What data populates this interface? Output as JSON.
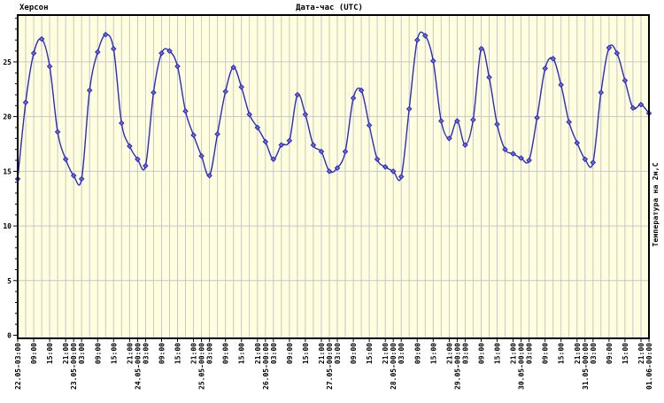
{
  "header": {
    "station": "Херсон",
    "x_axis_title": "Дата-час (UTC)"
  },
  "chart_data": {
    "type": "line",
    "title": "Херсон",
    "xlabel": "Дата-час (UTC)",
    "ylabel": "Температура на 2м,C",
    "x_start": "22.05 03:00 UTC",
    "x_end": "01.06 00:00 UTC",
    "x_step_hours": 3,
    "ylim": [
      0,
      29.3
    ],
    "y_ticks": [
      0,
      5,
      10,
      15,
      20,
      25
    ],
    "grid": true,
    "legend": "none",
    "plot_bg": "#ffffdf",
    "grid_color": "#c6c6c6",
    "line_color": "#2b2bbe",
    "marker": "diamond",
    "marker_fill": "#6a6ad8",
    "x_ticks": [
      {
        "i": 0,
        "label": "22.05-03:00"
      },
      {
        "i": 2,
        "label": "09:00"
      },
      {
        "i": 4,
        "label": "15:00"
      },
      {
        "i": 6,
        "label": "21:00"
      },
      {
        "i": 7,
        "label": "23.05-00:00"
      },
      {
        "i": 8,
        "label": "03:00"
      },
      {
        "i": 10,
        "label": "09:00"
      },
      {
        "i": 12,
        "label": "15:00"
      },
      {
        "i": 14,
        "label": "21:00"
      },
      {
        "i": 15,
        "label": "24.05-00:00"
      },
      {
        "i": 16,
        "label": "03:00"
      },
      {
        "i": 18,
        "label": "09:00"
      },
      {
        "i": 20,
        "label": "15:00"
      },
      {
        "i": 22,
        "label": "21:00"
      },
      {
        "i": 23,
        "label": "25.05-00:00"
      },
      {
        "i": 24,
        "label": "03:00"
      },
      {
        "i": 26,
        "label": "09:00"
      },
      {
        "i": 28,
        "label": "15:00"
      },
      {
        "i": 30,
        "label": "21:00"
      },
      {
        "i": 31,
        "label": "26.05-00:00"
      },
      {
        "i": 32,
        "label": "03:00"
      },
      {
        "i": 34,
        "label": "09:00"
      },
      {
        "i": 36,
        "label": "15:00"
      },
      {
        "i": 38,
        "label": "21:00"
      },
      {
        "i": 39,
        "label": "27.05-00:00"
      },
      {
        "i": 40,
        "label": "03:00"
      },
      {
        "i": 42,
        "label": "09:00"
      },
      {
        "i": 44,
        "label": "15:00"
      },
      {
        "i": 46,
        "label": "21:00"
      },
      {
        "i": 47,
        "label": "28.05-00:00"
      },
      {
        "i": 48,
        "label": "03:00"
      },
      {
        "i": 50,
        "label": "09:00"
      },
      {
        "i": 52,
        "label": "15:00"
      },
      {
        "i": 54,
        "label": "21:00"
      },
      {
        "i": 55,
        "label": "29.05-00:00"
      },
      {
        "i": 56,
        "label": "03:00"
      },
      {
        "i": 58,
        "label": "09:00"
      },
      {
        "i": 60,
        "label": "15:00"
      },
      {
        "i": 62,
        "label": "21:00"
      },
      {
        "i": 63,
        "label": "30.05-00:00"
      },
      {
        "i": 64,
        "label": "03:00"
      },
      {
        "i": 66,
        "label": "09:00"
      },
      {
        "i": 68,
        "label": "15:00"
      },
      {
        "i": 70,
        "label": "21:00"
      },
      {
        "i": 71,
        "label": "31.05-00:00"
      },
      {
        "i": 72,
        "label": "03:00"
      },
      {
        "i": 74,
        "label": "09:00"
      },
      {
        "i": 76,
        "label": "15:00"
      },
      {
        "i": 78,
        "label": "21:00"
      },
      {
        "i": 79,
        "label": "01.06-00:00"
      }
    ],
    "values": [
      14.3,
      21.3,
      25.8,
      27.1,
      24.6,
      18.6,
      16.1,
      14.6,
      14.3,
      22.4,
      25.9,
      27.5,
      26.2,
      19.4,
      17.3,
      16.1,
      15.5,
      22.2,
      25.8,
      26.0,
      24.6,
      20.5,
      18.3,
      16.4,
      14.6,
      18.4,
      22.3,
      24.5,
      22.7,
      20.2,
      19.0,
      17.7,
      16.1,
      17.4,
      17.8,
      22.0,
      20.2,
      17.4,
      16.8,
      15.0,
      15.3,
      16.8,
      21.7,
      22.4,
      19.2,
      16.1,
      15.4,
      15.0,
      14.5,
      20.7,
      27.0,
      27.4,
      25.1,
      19.6,
      18.0,
      19.6,
      17.4,
      19.7,
      26.2,
      23.6,
      19.3,
      17.0,
      16.6,
      16.2,
      16.0,
      19.9,
      24.4,
      25.3,
      22.9,
      19.5,
      17.6,
      16.1,
      15.8,
      22.2,
      26.3,
      25.8,
      23.3,
      20.8,
      21.1,
      20.3
    ]
  }
}
